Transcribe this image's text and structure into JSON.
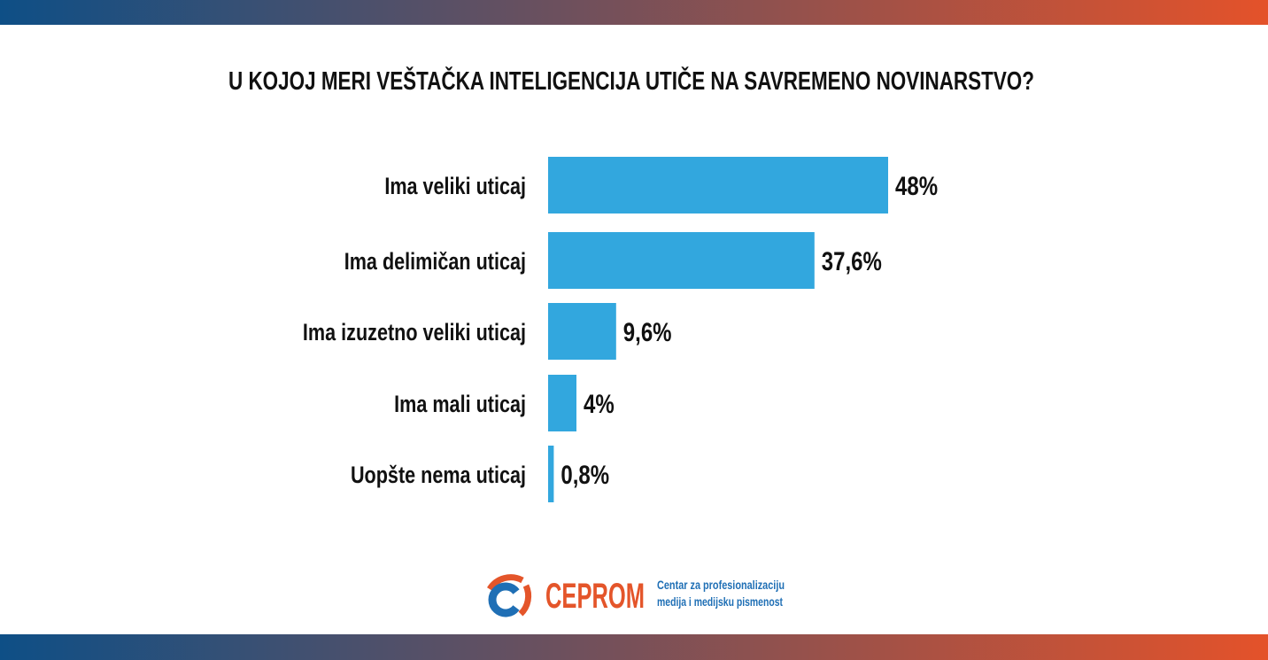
{
  "colors": {
    "bar": "#32a7de",
    "gradient_start": "#0e4f86",
    "gradient_end": "#e4522a",
    "logo_orange": "#e4552a",
    "logo_blue": "#1f6fb5",
    "text": "#111111"
  },
  "chart_data": {
    "type": "bar",
    "orientation": "horizontal",
    "title": "U KOJOJ MERI VEŠTAČKA INTELIGENCIJA UTIČE NA SAVREMENO NOVINARSTVO?",
    "categories": [
      "Ima veliki uticaj",
      "Ima delimičan uticaj",
      "Ima izuzetno veliki uticaj",
      "Ima mali uticaj",
      "Uopšte nema uticaj"
    ],
    "values": [
      48,
      37.6,
      9.6,
      4,
      0.8
    ],
    "value_labels": [
      "48%",
      "37,6%",
      "9,6%",
      "4%",
      "0,8%"
    ],
    "xlim": [
      0,
      48
    ],
    "grid": false,
    "axes_visible": false
  },
  "logo": {
    "name": "CEPROM",
    "tagline_line1": "Centar za profesionalizaciju",
    "tagline_line2": "medija i medijsku pismenost"
  }
}
